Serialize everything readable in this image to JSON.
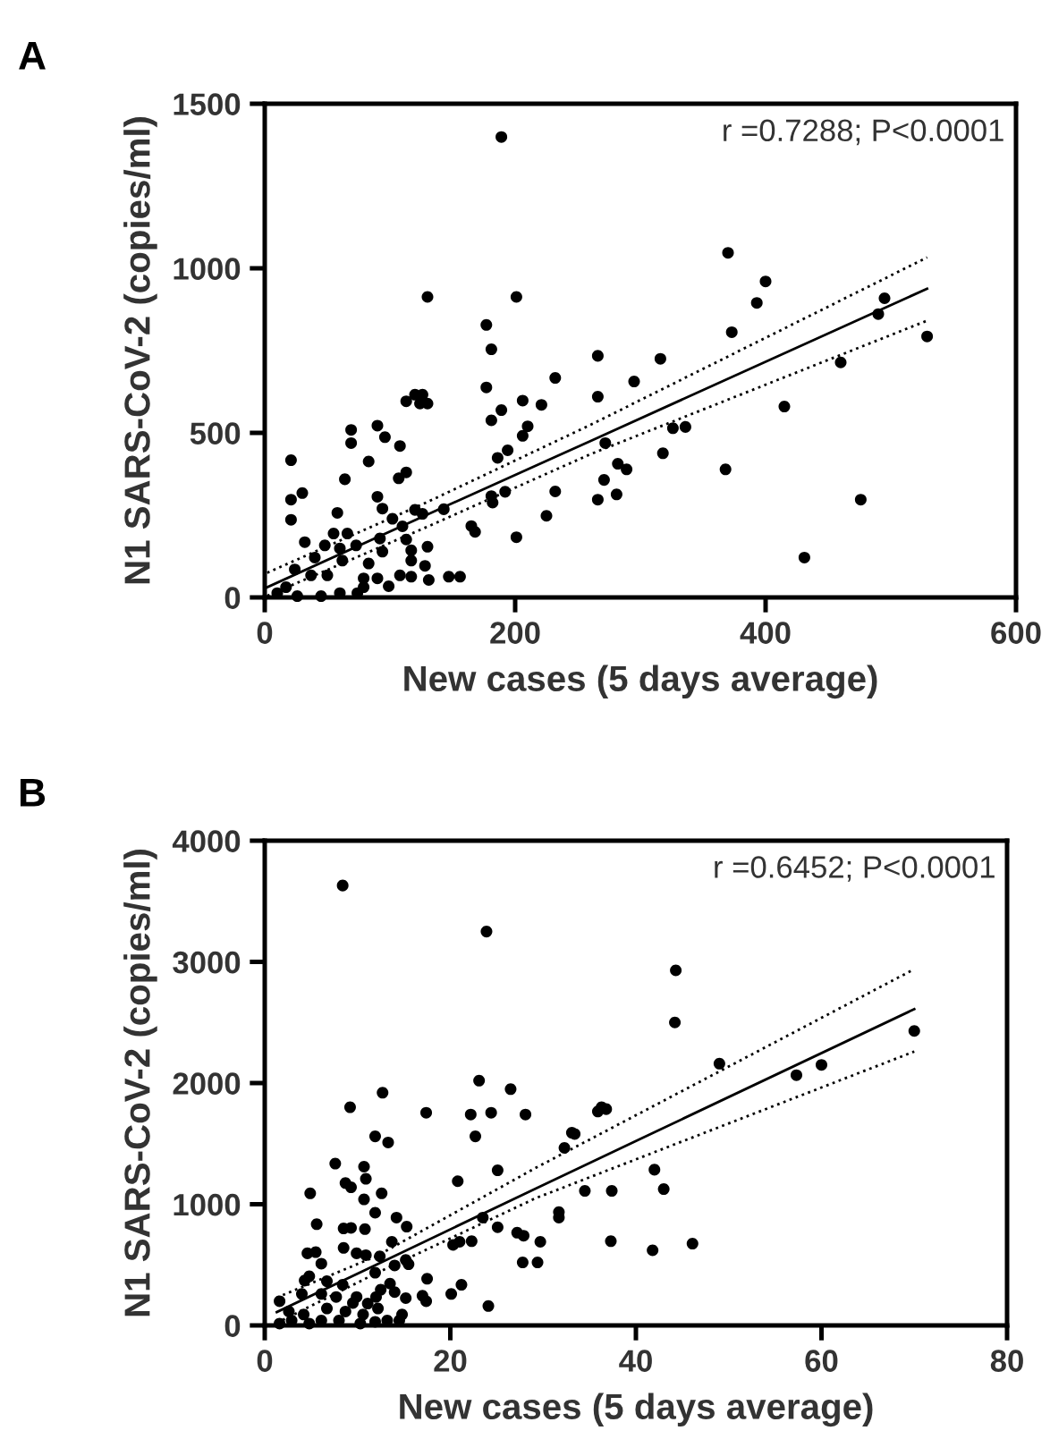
{
  "chart_data": [
    {
      "type": "scatter",
      "title": "A",
      "xlabel": "New cases (5 days average)",
      "ylabel": "N1 SARS-CoV-2 (copies/ml)",
      "xlim": [
        0,
        600
      ],
      "ylim": [
        0,
        1500
      ],
      "xticks": [
        0,
        200,
        400,
        600
      ],
      "yticks": [
        0,
        500,
        1000,
        1500
      ],
      "annotations": [
        "r =0.7288; P<0.0001"
      ],
      "series": [
        {
          "marker": "circle",
          "color": "#000000",
          "x": [
            189,
            130,
            201,
            177,
            181,
            177,
            181,
            189,
            206,
            221,
            232,
            266,
            266,
            206,
            210,
            186,
            194,
            272,
            271,
            266,
            232,
            225,
            201,
            192,
            181,
            182,
            168,
            165,
            143,
            113,
            120,
            126,
            130,
            124,
            69,
            69,
            90,
            96,
            108,
            83,
            113,
            107,
            64,
            21,
            30,
            21,
            21,
            58,
            90,
            94,
            102,
            110,
            120,
            126,
            55,
            66,
            32,
            48,
            60,
            73,
            92,
            94,
            113,
            117,
            130,
            117,
            128,
            108,
            117,
            99,
            147,
            156,
            131,
            79,
            50,
            37,
            24,
            17,
            10,
            60,
            74,
            45,
            26,
            79,
            90,
            62,
            40,
            83,
            370,
            400,
            393,
            373,
            495,
            490,
            529,
            460,
            316,
            295,
            415,
            326,
            336,
            318,
            282,
            289,
            281,
            368,
            476,
            431
          ],
          "values": [
            1399,
            913,
            913,
            828,
            754,
            638,
            538,
            569,
            598,
            585,
            667,
            734,
            610,
            491,
            520,
            424,
            447,
            469,
            357,
            297,
            322,
            248,
            183,
            321,
            308,
            288,
            199,
            217,
            268,
            596,
            616,
            616,
            589,
            589,
            509,
            469,
            522,
            487,
            460,
            413,
            380,
            362,
            359,
            417,
            317,
            297,
            236,
            257,
            306,
            270,
            239,
            216,
            266,
            254,
            194,
            194,
            168,
            158,
            149,
            158,
            179,
            139,
            176,
            143,
            154,
            112,
            96,
            67,
            63,
            34,
            63,
            63,
            53,
            58,
            67,
            67,
            85,
            31,
            13,
            13,
            13,
            4,
            4,
            31,
            58,
            112,
            121,
            103,
            1047,
            960,
            895,
            806,
            909,
            861,
            793,
            714,
            725,
            656,
            580,
            514,
            518,
            438,
            406,
            389,
            313,
            389,
            297,
            121
          ]
        },
        {
          "type": "line",
          "marker": "none",
          "color": "#000000",
          "line_style": "solid",
          "x": [
            2,
            130,
            260,
            529
          ],
          "values": [
            31,
            252,
            475,
            938
          ]
        },
        {
          "type": "line",
          "marker": "none",
          "color": "#000000",
          "line_style": "dotted",
          "x": [
            2,
            130,
            260,
            529
          ],
          "values": [
            5,
            215,
            435,
            841
          ]
        },
        {
          "type": "line",
          "marker": "none",
          "color": "#000000",
          "line_style": "dotted",
          "x": [
            2,
            130,
            260,
            529
          ],
          "values": [
            75,
            290,
            524,
            1033
          ]
        }
      ]
    },
    {
      "type": "scatter",
      "title": "B",
      "xlabel": "New cases (5 days average)",
      "ylabel": "N1 SARS-CoV-2 (copies/ml)",
      "xlim": [
        0,
        80
      ],
      "ylim": [
        0,
        4000
      ],
      "xticks": [
        0,
        20,
        40,
        60,
        80
      ],
      "yticks": [
        0,
        1000,
        2000,
        3000,
        4000
      ],
      "annotations": [
        "r =0.6452; P<0.0001"
      ],
      "series": [
        {
          "marker": "circle",
          "color": "#000000",
          "x": [
            8.4,
            23.9,
            23.1,
            26.5,
            12.7,
            9.2,
            17.4,
            22.2,
            24.4,
            28.1,
            11.9,
            13.3,
            22.7,
            32.3,
            33.1,
            7.6,
            10.7,
            10.9,
            8.7,
            9.3,
            12.6,
            10.7,
            4.9,
            20.8,
            25.1,
            14.2,
            15.3,
            11.9,
            5.6,
            8.5,
            9.3,
            10.8,
            23.5,
            25.1,
            27.2,
            27.9,
            29.7,
            31.7,
            31.7,
            21.0,
            20.3,
            22.3,
            27.8,
            29.4,
            21.2,
            20.1,
            17.5,
            17.0,
            17.4,
            24.1,
            4.6,
            5.5,
            8.5,
            13.7,
            15.2,
            15.5,
            14.0,
            12.4,
            10.9,
            9.9,
            6.1,
            4.8,
            4.3,
            6.7,
            8.4,
            11.9,
            13.5,
            14.0,
            15.2,
            12.0,
            12.5,
            9.9,
            7.7,
            6.1,
            4.0,
            1.6,
            2.6,
            4.2,
            6.7,
            8.7,
            10.6,
            12.2,
            14.8,
            14.5,
            13.2,
            11.9,
            10.3,
            8.0,
            6.1,
            4.8,
            2.9,
            1.6,
            11.1,
            9.5,
            44.3,
            44.2,
            49.0,
            57.3,
            60.0,
            35.9,
            36.3,
            36.8,
            33.4,
            42.0,
            43.0,
            34.5,
            37.4,
            37.3,
            41.8,
            46.1,
            70
          ],
          "values": [
            3630,
            3250,
            2020,
            1950,
            1920,
            1800,
            1755,
            1740,
            1755,
            1740,
            1560,
            1510,
            1560,
            1465,
            1590,
            1335,
            1310,
            1210,
            1175,
            1140,
            1090,
            1040,
            1090,
            1190,
            1280,
            890,
            815,
            930,
            835,
            800,
            805,
            795,
            890,
            810,
            765,
            740,
            690,
            935,
            890,
            690,
            665,
            695,
            520,
            520,
            335,
            260,
            385,
            245,
            200,
            160,
            595,
            605,
            640,
            690,
            540,
            505,
            495,
            570,
            580,
            595,
            510,
            405,
            370,
            365,
            335,
            435,
            345,
            275,
            225,
            235,
            295,
            235,
            235,
            260,
            260,
            200,
            115,
            90,
            140,
            115,
            90,
            140,
            90,
            40,
            40,
            30,
            15,
            40,
            40,
            15,
            40,
            15,
            180,
            185,
            2930,
            2500,
            2160,
            2065,
            2150,
            1765,
            1800,
            1785,
            1580,
            1285,
            1125,
            1110,
            1110,
            695,
            620,
            675,
            2430
          ]
        },
        {
          "type": "line",
          "marker": "none",
          "color": "#000000",
          "line_style": "solid",
          "x": [
            1.3,
            12,
            29.2,
            70
          ],
          "values": [
            110,
            500,
            1130,
            2610
          ]
        },
        {
          "type": "line",
          "marker": "none",
          "color": "#000000",
          "line_style": "dotted",
          "x": [
            1.3,
            12,
            29.2,
            70
          ],
          "values": [
            20,
            430,
            1050,
            2260
          ]
        },
        {
          "type": "line",
          "marker": "none",
          "color": "#000000",
          "line_style": "dotted",
          "x": [
            1.3,
            12,
            29.2,
            70
          ],
          "values": [
            230,
            570,
            1300,
            2940
          ]
        }
      ]
    }
  ]
}
